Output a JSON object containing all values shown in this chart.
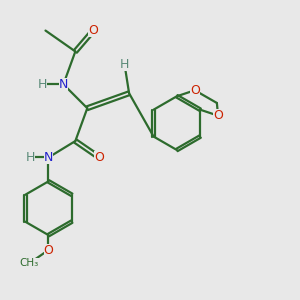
{
  "bg_color": "#e8e8e8",
  "bond_color": "#2d6b2d",
  "atom_colors": {
    "O": "#cc2200",
    "N": "#2222cc",
    "H": "#5a8a78",
    "C": "#2d6b2d"
  },
  "figsize": [
    3.0,
    3.0
  ],
  "dpi": 100
}
